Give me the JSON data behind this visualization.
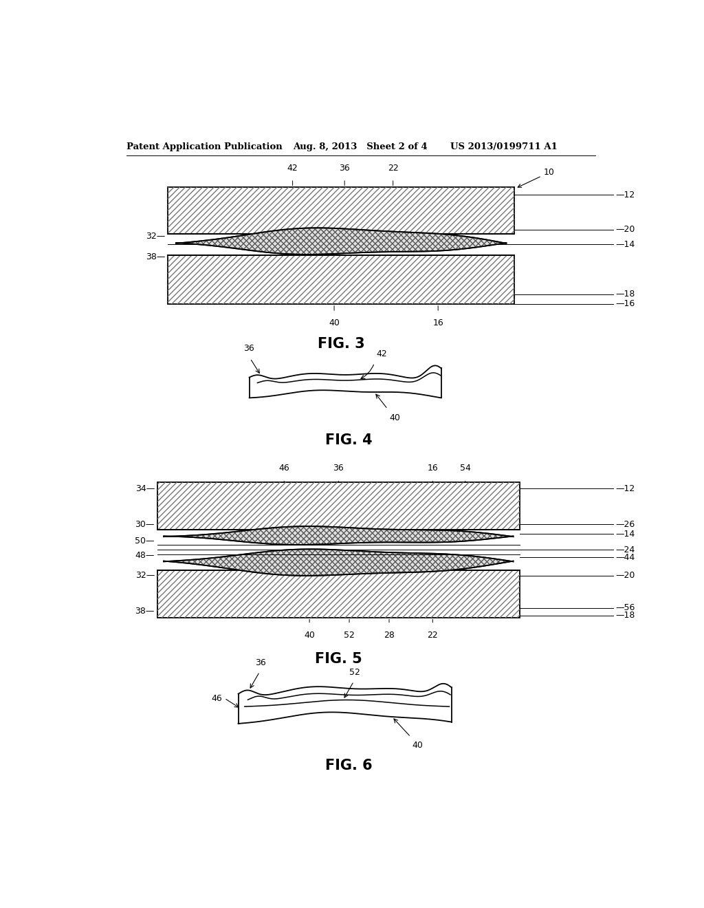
{
  "header_left": "Patent Application Publication",
  "header_mid": "Aug. 8, 2013   Sheet 2 of 4",
  "header_right": "US 2013/0199711 A1",
  "fig3_label": "FIG. 3",
  "fig4_label": "FIG. 4",
  "fig5_label": "FIG. 5",
  "fig6_label": "FIG. 6",
  "bg_color": "#ffffff",
  "line_color": "#000000"
}
